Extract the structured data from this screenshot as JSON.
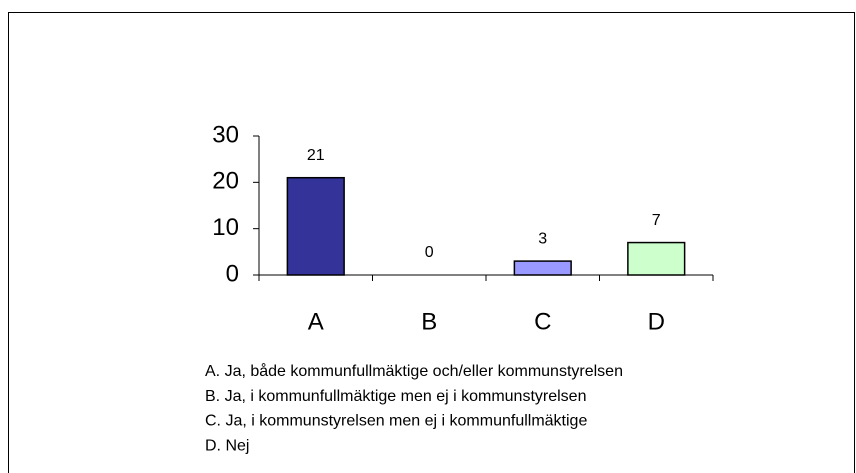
{
  "chart_data": {
    "type": "bar",
    "categories": [
      "A",
      "B",
      "C",
      "D"
    ],
    "values": [
      21,
      0,
      3,
      7
    ],
    "colors": [
      "#333399",
      "#9999ff",
      "#9999ff",
      "#ccffcc"
    ],
    "ylim": [
      0,
      30
    ],
    "yticks": [
      0,
      10,
      20,
      30
    ],
    "grid": false,
    "notes": [
      "A. Ja, både kommunfullmäktige och/eller kommunstyrelsen",
      "B. Ja, i kommunfullmäktige men ej i kommunstyrelsen",
      "C. Ja, i kommunstyrelsen men ej i kommunfullmäktige",
      "D. Nej"
    ]
  }
}
